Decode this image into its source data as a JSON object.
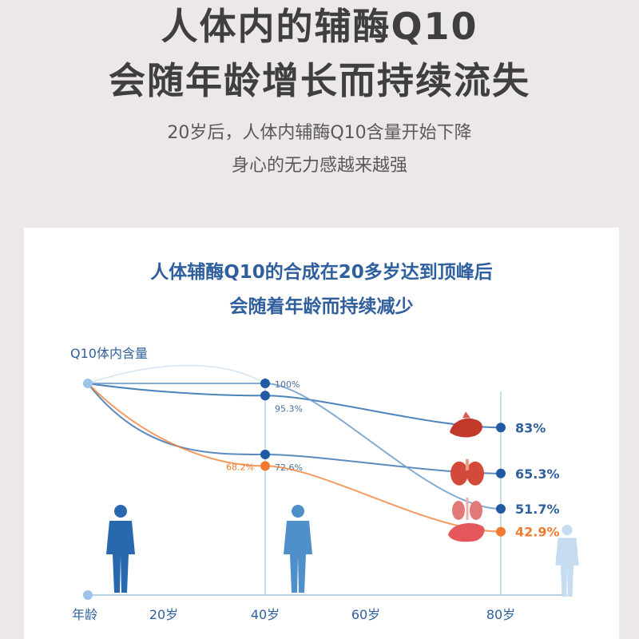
{
  "headline": {
    "line1": "人体内的辅酶Q10",
    "line2": "会随年龄增长而持续流失"
  },
  "subtitle": {
    "line1": "20岁后，人体内辅酶Q10含量开始下降",
    "line2": "身心的无力感越来越强"
  },
  "chart_data": {
    "type": "line",
    "title": "人体辅酶Q10的合成在20多岁达到顶峰后",
    "subtitle": "会随着年龄而持续减少",
    "ylabel": "Q10体内含量",
    "xlabel": "年龄",
    "x_ticks": [
      "20岁",
      "40岁",
      "60岁",
      "80岁"
    ],
    "x_tick_values": [
      20,
      40,
      60,
      80
    ],
    "x_range": [
      0,
      80
    ],
    "y_range": [
      40,
      100
    ],
    "grid": false,
    "series": [
      {
        "name": "",
        "organ": "heart-icon",
        "color": "#2e6fb0",
        "points": [
          [
            0,
            100
          ],
          [
            40,
            95.3
          ],
          [
            80,
            83
          ]
        ],
        "labels": [
          "",
          "95.3%",
          "83%"
        ]
      },
      {
        "name": "",
        "organ": "lungs-icon",
        "color": "#3e77b4",
        "points": [
          [
            0,
            100
          ],
          [
            40,
            72.6
          ],
          [
            80,
            65.3
          ]
        ],
        "labels": [
          "",
          "72.6%",
          "65.3%"
        ]
      },
      {
        "name": "",
        "organ": "kidney-icon",
        "color": "#6f9ccb",
        "points": [
          [
            0,
            100
          ],
          [
            40,
            100
          ],
          [
            80,
            51.7
          ]
        ],
        "labels": [
          "",
          "100%",
          "51.7%"
        ]
      },
      {
        "name": "",
        "organ": "liver-icon",
        "color": "#f07a2f",
        "points": [
          [
            0,
            100
          ],
          [
            40,
            68.2
          ],
          [
            80,
            42.9
          ]
        ],
        "labels": [
          "",
          "68.2%",
          "42.9%"
        ]
      }
    ],
    "colors": {
      "axis": "#b9cfe6",
      "text_blue": "#2f5f9c",
      "orange": "#f07a2f",
      "figure_dark": "#2768ae",
      "figure_mid": "#4f8fca",
      "figure_light": "#c6dcf0"
    }
  }
}
